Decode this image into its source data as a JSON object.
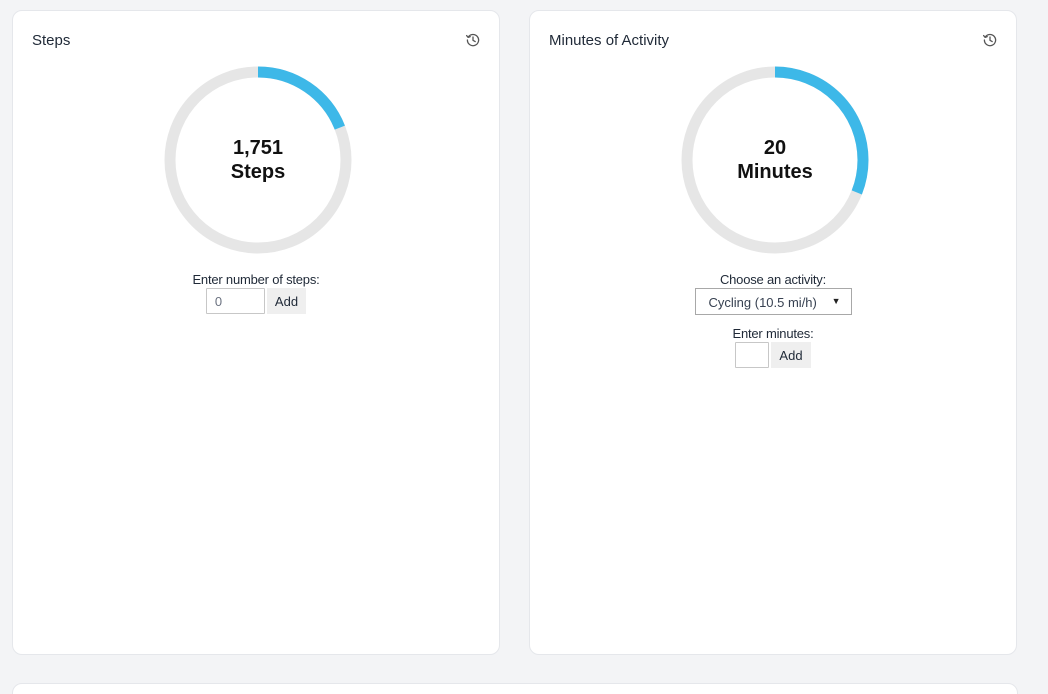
{
  "cards": {
    "steps": {
      "title": "Steps",
      "progress": 0.19,
      "value": "1,751",
      "unit": "Steps",
      "form": {
        "label": "Enter number of steps:",
        "input_value": "0",
        "add_label": "Add"
      }
    },
    "minutes": {
      "title": "Minutes of Activity",
      "progress": 0.31,
      "value": "20",
      "unit": "Minutes",
      "activity": {
        "label": "Choose an activity:",
        "selected": "Cycling (10.5 mi/h)"
      },
      "form": {
        "label": "Enter minutes:",
        "input_value": "",
        "add_label": "Add"
      }
    }
  },
  "icons": {
    "history": "history-icon",
    "dropdown": "dropdown-arrow-icon"
  },
  "colors": {
    "progress": "#3db8e8",
    "track": "#e6e6e6"
  }
}
